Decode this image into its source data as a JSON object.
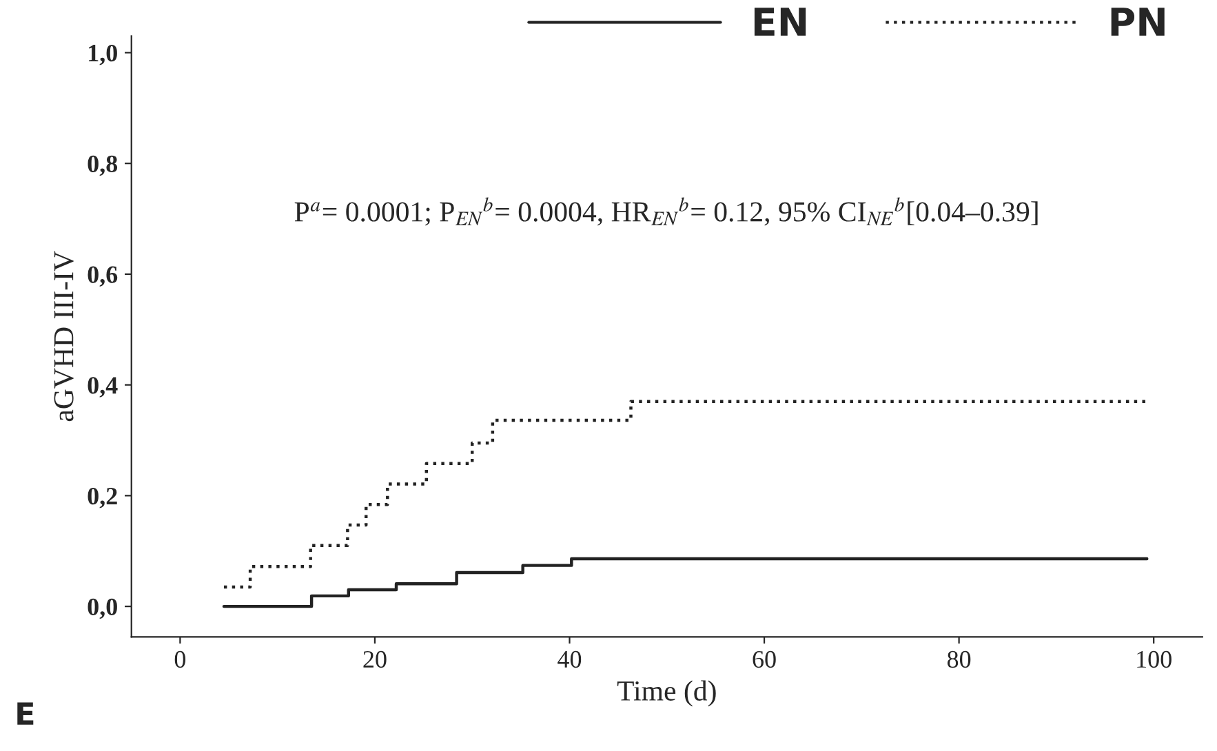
{
  "chart_data": {
    "type": "step",
    "xlabel": "Time (d)",
    "ylabel": "aGVHD III-IV",
    "series": [
      {
        "name": "EN",
        "color": "#222222",
        "line_style": "solid",
        "x": [
          4.5,
          13.5,
          17.3,
          22.2,
          28.4,
          35.2,
          40.2,
          99.3
        ],
        "values": [
          0,
          0.019,
          0.03,
          0.041,
          0.061,
          0.074,
          0.086,
          0.086
        ]
      },
      {
        "name": "PN",
        "color": "#222222",
        "line_style": "dotted",
        "x": [
          4.5,
          7.2,
          13.4,
          17.2,
          19.1,
          21.3,
          25.3,
          30,
          32.1,
          46.3,
          99.3
        ],
        "values": [
          0.035,
          0.072,
          0.11,
          0.147,
          0.184,
          0.221,
          0.258,
          0.295,
          0.336,
          0.37,
          0.37
        ]
      }
    ],
    "xlim": [
      -5,
      105
    ],
    "xticks": [
      0,
      20,
      40,
      60,
      80,
      100
    ],
    "ylim": [
      -0.055,
      1.03
    ],
    "yticks": [
      {
        "value": 0,
        "label": "0,0"
      },
      {
        "value": 0.2,
        "label": "0,2"
      },
      {
        "value": 0.4,
        "label": "0,4"
      },
      {
        "value": 0.6,
        "label": "0,6"
      },
      {
        "value": 0.8,
        "label": "0,8"
      },
      {
        "value": 1.0,
        "label": "1,0"
      }
    ],
    "annotations": [
      "P$^{a}$= 0.0001; P$_{EN}$$^{b}$= 0.0004, HR$_{EN}$$^{b}$= 0.12, 95% CI$_{NE}$$^{b}$[0.04–0.39]",
      "E"
    ],
    "legend": "top right",
    "grid": false
  }
}
